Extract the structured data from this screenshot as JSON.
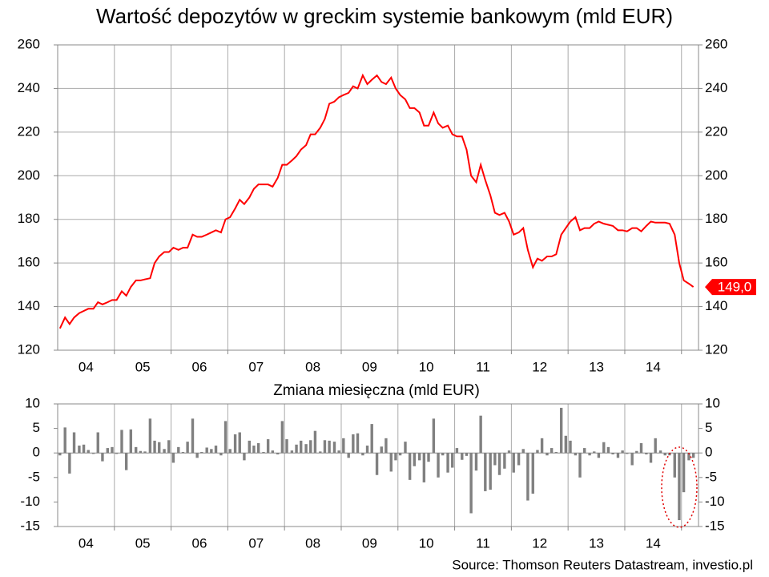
{
  "source": "Source: Thomson Reuters Datastream, investio.pl",
  "chart_data": [
    {
      "type": "line",
      "title": "Wartość depozytów w greckim systemie bankowym (mld EUR)",
      "color": "#ff0000",
      "x": [
        2004.04,
        2004.13,
        2004.21,
        2004.29,
        2004.38,
        2004.46,
        2004.54,
        2004.63,
        2004.71,
        2004.79,
        2004.88,
        2004.96,
        2005.04,
        2005.13,
        2005.21,
        2005.29,
        2005.38,
        2005.46,
        2005.54,
        2005.63,
        2005.71,
        2005.79,
        2005.88,
        2005.96,
        2006.04,
        2006.13,
        2006.21,
        2006.29,
        2006.38,
        2006.46,
        2006.54,
        2006.63,
        2006.71,
        2006.79,
        2006.88,
        2006.96,
        2007.04,
        2007.13,
        2007.21,
        2007.29,
        2007.38,
        2007.46,
        2007.54,
        2007.63,
        2007.71,
        2007.79,
        2007.88,
        2007.96,
        2008.04,
        2008.13,
        2008.21,
        2008.29,
        2008.38,
        2008.46,
        2008.54,
        2008.63,
        2008.71,
        2008.79,
        2008.88,
        2008.96,
        2009.04,
        2009.13,
        2009.21,
        2009.29,
        2009.38,
        2009.46,
        2009.54,
        2009.63,
        2009.71,
        2009.79,
        2009.88,
        2009.96,
        2010.04,
        2010.13,
        2010.21,
        2010.29,
        2010.38,
        2010.46,
        2010.54,
        2010.63,
        2010.71,
        2010.79,
        2010.88,
        2010.96,
        2011.04,
        2011.13,
        2011.21,
        2011.29,
        2011.38,
        2011.46,
        2011.54,
        2011.63,
        2011.71,
        2011.79,
        2011.88,
        2011.96,
        2012.04,
        2012.13,
        2012.21,
        2012.29,
        2012.38,
        2012.46,
        2012.54,
        2012.63,
        2012.71,
        2012.79,
        2012.88,
        2012.96,
        2013.04,
        2013.13,
        2013.21,
        2013.29,
        2013.38,
        2013.46,
        2013.54,
        2013.63,
        2013.71,
        2013.79,
        2013.88,
        2013.96,
        2014.04,
        2014.13,
        2014.21,
        2014.29,
        2014.38,
        2014.46,
        2014.54,
        2014.63,
        2014.71,
        2014.79,
        2014.88,
        2014.96,
        2015.04,
        2015.13,
        2015.21
      ],
      "values": [
        130,
        135,
        132,
        135,
        137,
        138,
        139,
        139,
        142,
        141,
        142,
        143,
        143,
        147,
        145,
        149,
        152,
        152,
        152.5,
        153,
        160,
        163,
        165,
        165,
        167,
        166,
        167,
        167,
        173,
        172,
        172,
        173,
        174,
        175,
        174,
        180,
        181,
        185,
        189,
        187,
        190,
        194,
        196,
        196,
        196,
        195,
        199,
        205,
        205,
        207,
        209,
        212,
        214,
        219,
        219,
        222,
        226,
        233,
        234,
        236,
        237,
        238,
        241,
        240,
        246,
        242,
        244,
        246,
        243,
        242,
        245,
        240,
        237,
        235,
        231,
        231,
        229,
        223,
        223,
        229,
        224,
        222,
        223,
        219,
        218,
        218,
        212,
        200,
        197,
        205,
        198,
        191,
        183,
        182,
        183,
        179,
        173,
        174,
        176,
        166,
        158,
        162,
        161,
        163,
        163,
        164,
        173,
        176,
        179,
        181,
        175,
        176,
        176,
        178,
        179,
        178,
        177.5,
        177,
        175,
        175,
        174.5,
        176,
        176,
        174.5,
        177,
        179,
        178.5,
        178.5,
        178.5,
        178,
        173,
        160,
        152,
        150.5,
        149.0
      ],
      "value_labels": [
        null,
        null,
        null,
        null,
        null,
        null,
        null,
        null,
        null,
        null,
        null,
        null,
        null,
        null,
        null,
        null,
        null,
        null,
        null,
        null,
        null,
        null,
        null,
        null,
        null,
        null,
        null,
        null,
        null,
        null,
        null,
        null,
        null,
        null,
        null,
        null,
        null,
        null,
        null,
        null,
        null,
        null,
        null,
        null,
        null,
        null,
        null,
        null,
        null,
        null,
        null,
        null,
        null,
        null,
        null,
        null,
        null,
        null,
        null,
        null,
        null,
        null,
        null,
        null,
        null,
        null,
        null,
        null,
        null,
        null,
        null,
        null,
        null,
        null,
        null,
        null,
        null,
        null,
        null,
        null,
        null,
        null,
        null,
        null,
        null,
        null,
        null,
        null,
        null,
        null,
        null,
        null,
        null,
        null,
        null,
        null,
        null,
        null,
        null,
        null,
        null,
        null,
        null,
        null,
        null,
        null,
        null,
        null,
        null,
        null,
        null,
        null,
        null,
        null,
        null,
        null,
        null,
        null,
        null,
        null,
        null,
        null,
        null,
        null,
        null,
        null,
        null,
        null,
        null,
        null,
        null,
        null,
        null,
        null,
        "149,0"
      ],
      "xlim": [
        2004,
        2015.3
      ],
      "xticks": [
        {
          "value": 2004.5,
          "label": "04"
        },
        {
          "value": 2005.5,
          "label": "05"
        },
        {
          "value": 2006.5,
          "label": "06"
        },
        {
          "value": 2007.5,
          "label": "07"
        },
        {
          "value": 2008.5,
          "label": "08"
        },
        {
          "value": 2009.5,
          "label": "09"
        },
        {
          "value": 2010.5,
          "label": "10"
        },
        {
          "value": 2011.5,
          "label": "11"
        },
        {
          "value": 2012.5,
          "label": "12"
        },
        {
          "value": 2013.5,
          "label": "13"
        },
        {
          "value": 2014.5,
          "label": "14"
        }
      ],
      "ylim": [
        120,
        260
      ],
      "yticks": [
        120,
        140,
        160,
        180,
        200,
        220,
        240,
        260
      ],
      "xgrid": true,
      "ygrid": true
    },
    {
      "type": "bar",
      "title": "Zmiana miesięczna (mld EUR)",
      "color": "#808080",
      "x": [
        2004.04,
        2004.13,
        2004.21,
        2004.29,
        2004.38,
        2004.46,
        2004.54,
        2004.63,
        2004.71,
        2004.79,
        2004.88,
        2004.96,
        2005.04,
        2005.13,
        2005.21,
        2005.29,
        2005.38,
        2005.46,
        2005.54,
        2005.63,
        2005.71,
        2005.79,
        2005.88,
        2005.96,
        2006.04,
        2006.13,
        2006.21,
        2006.29,
        2006.38,
        2006.46,
        2006.54,
        2006.63,
        2006.71,
        2006.79,
        2006.88,
        2006.96,
        2007.04,
        2007.13,
        2007.21,
        2007.29,
        2007.38,
        2007.46,
        2007.54,
        2007.63,
        2007.71,
        2007.79,
        2007.88,
        2007.96,
        2008.04,
        2008.13,
        2008.21,
        2008.29,
        2008.38,
        2008.46,
        2008.54,
        2008.63,
        2008.71,
        2008.79,
        2008.88,
        2008.96,
        2009.04,
        2009.13,
        2009.21,
        2009.29,
        2009.38,
        2009.46,
        2009.54,
        2009.63,
        2009.71,
        2009.79,
        2009.88,
        2009.96,
        2010.04,
        2010.13,
        2010.21,
        2010.29,
        2010.38,
        2010.46,
        2010.54,
        2010.63,
        2010.71,
        2010.79,
        2010.88,
        2010.96,
        2011.04,
        2011.13,
        2011.21,
        2011.29,
        2011.38,
        2011.46,
        2011.54,
        2011.63,
        2011.71,
        2011.79,
        2011.88,
        2011.96,
        2012.04,
        2012.13,
        2012.21,
        2012.29,
        2012.38,
        2012.46,
        2012.54,
        2012.63,
        2012.71,
        2012.79,
        2012.88,
        2012.96,
        2013.04,
        2013.13,
        2013.21,
        2013.29,
        2013.38,
        2013.46,
        2013.54,
        2013.63,
        2013.71,
        2013.79,
        2013.88,
        2013.96,
        2014.04,
        2014.13,
        2014.21,
        2014.29,
        2014.38,
        2014.46,
        2014.54,
        2014.63,
        2014.71,
        2014.79,
        2014.88,
        2014.96,
        2015.04,
        2015.13,
        2015.21
      ],
      "values": [
        -0.5,
        5.2,
        -4.2,
        4.2,
        1.5,
        1.7,
        0.6,
        -0.2,
        4.2,
        -1.7,
        1.0,
        1.2,
        -0.2,
        4.7,
        -3.5,
        4.8,
        1.2,
        0.4,
        0.3,
        7.0,
        2.5,
        2.2,
        0.8,
        2.6,
        -2.0,
        1.2,
        0.2,
        2.3,
        7.0,
        -1.0,
        0.2,
        1.1,
        0.8,
        1.5,
        -0.5,
        6.5,
        0.8,
        3.8,
        4.2,
        -1.5,
        2.5,
        1.5,
        2.0,
        0.2,
        2.8,
        0.5,
        -0.3,
        6.5,
        2.8,
        0.5,
        1.7,
        2.5,
        1.8,
        2.6,
        4.5,
        0.3,
        2.6,
        2.5,
        2.3,
        0.5,
        3.0,
        -1.0,
        3.8,
        4.0,
        -0.5,
        1.5,
        5.9,
        -4.5,
        1.3,
        3.0,
        -3.8,
        -1.5,
        -0.5,
        2.3,
        -5.5,
        -2.7,
        -1.5,
        -6.0,
        -1.8,
        7.0,
        -5.0,
        -0.5,
        -4.0,
        -3.0,
        1.0,
        -1.4,
        -0.6,
        -12.3,
        -3.6,
        7.6,
        -7.8,
        -7.5,
        -2.5,
        -4.5,
        -3.2,
        0.5,
        -4.0,
        -2.5,
        0.8,
        -9.7,
        -8.3,
        0.6,
        3.0,
        -0.5,
        1.0,
        0.2,
        9.2,
        3.5,
        2.5,
        -0.5,
        -5.0,
        1.0,
        -0.5,
        0.3,
        -1.0,
        2.2,
        1.2,
        -0.3,
        -1.0,
        0.5,
        -0.2,
        -2.5,
        0.4,
        2.0,
        -0.3,
        -2.0,
        3.0,
        0.5,
        -0.5,
        -0.5,
        -5.0,
        -13.7,
        -8.0,
        -1.5,
        -1.0
      ],
      "xlim": [
        2004,
        2015.3
      ],
      "xticks": [
        {
          "value": 2004.5,
          "label": "04"
        },
        {
          "value": 2005.5,
          "label": "05"
        },
        {
          "value": 2006.5,
          "label": "06"
        },
        {
          "value": 2007.5,
          "label": "07"
        },
        {
          "value": 2008.5,
          "label": "08"
        },
        {
          "value": 2009.5,
          "label": "09"
        },
        {
          "value": 2010.5,
          "label": "10"
        },
        {
          "value": 2011.5,
          "label": "11"
        },
        {
          "value": 2012.5,
          "label": "12"
        },
        {
          "value": 2013.5,
          "label": "13"
        },
        {
          "value": 2014.5,
          "label": "14"
        }
      ],
      "ylim": [
        -15,
        10
      ],
      "yticks": [
        -15,
        -10,
        -5,
        0,
        5,
        10
      ],
      "xgrid": true,
      "ygrid": false
    }
  ]
}
